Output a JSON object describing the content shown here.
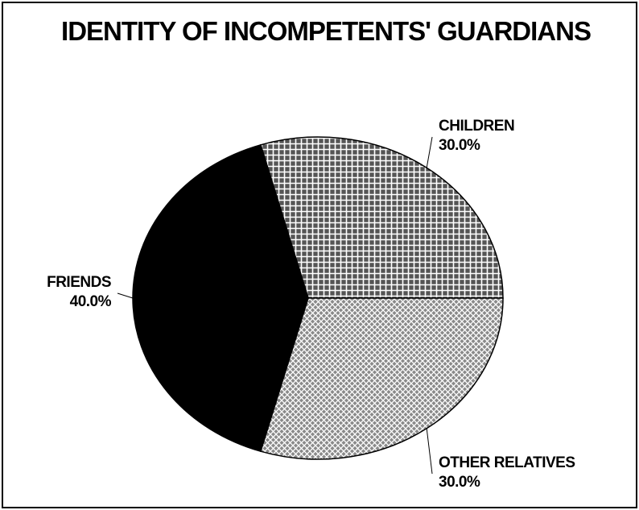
{
  "chart_data": {
    "type": "pie",
    "title": "IDENTITY OF INCOMPETENTS' GUARDIANS",
    "categories": [
      "CHILDREN",
      "FRIENDS",
      "OTHER RELATIVES"
    ],
    "values": [
      30,
      40,
      30
    ],
    "value_labels": [
      "30.0%",
      "40.0%",
      "30.0%"
    ],
    "colors": [
      "#555555",
      "#000000",
      "#8a8a8a"
    ]
  }
}
